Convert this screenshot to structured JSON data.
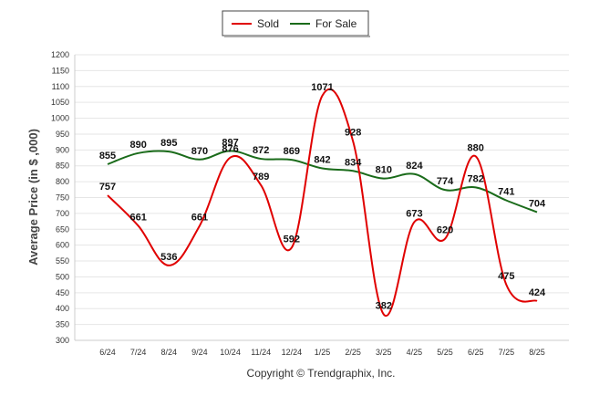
{
  "chart_data": {
    "type": "line",
    "ylabel": "Average Price (in $ ,000)",
    "ylim": [
      300,
      1200
    ],
    "ytick_step": 50,
    "grid": true,
    "legend_position": "top-center",
    "categories": [
      "6/24",
      "7/24",
      "8/24",
      "9/24",
      "10/24",
      "11/24",
      "12/24",
      "1/25",
      "2/25",
      "3/25",
      "4/25",
      "5/25",
      "6/25",
      "7/25",
      "8/25"
    ],
    "series": [
      {
        "name": "Sold",
        "color": "#e00000",
        "values": [
          757,
          661,
          536,
          661,
          876,
          789,
          592,
          1071,
          928,
          382,
          673,
          620,
          880,
          475,
          424
        ]
      },
      {
        "name": "For Sale",
        "color": "#1a6b1a",
        "values": [
          855,
          890,
          895,
          870,
          897,
          872,
          869,
          842,
          834,
          810,
          824,
          774,
          782,
          741,
          704
        ]
      }
    ]
  },
  "footer": "Copyright © Trendgraphix, Inc."
}
